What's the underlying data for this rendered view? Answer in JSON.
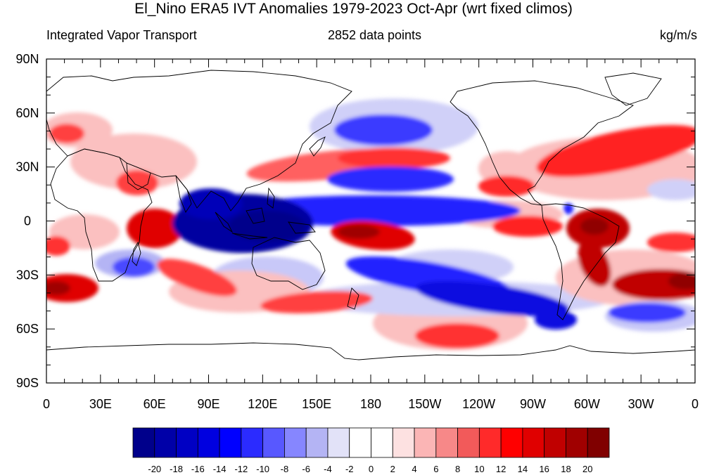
{
  "figure": {
    "title": "El_Nino ERA5 IVT Anomalies 1979-2023 Oct-Apr (wrt fixed climos)",
    "left_subtitle": "Integrated Vapor Transport",
    "center_subtitle": "2852 data points",
    "right_subtitle": "kg/m/s"
  },
  "axes": {
    "x_ticks": [
      "0",
      "30E",
      "60E",
      "90E",
      "120E",
      "150E",
      "180",
      "150W",
      "120W",
      "90W",
      "60W",
      "30W",
      "0"
    ],
    "y_ticks": [
      "90N",
      "60N",
      "30N",
      "0",
      "30S",
      "60S",
      "90S"
    ]
  },
  "colorbar": {
    "labels": [
      "-20",
      "-18",
      "-16",
      "-14",
      "-12",
      "-10",
      "-8",
      "-6",
      "-4",
      "-2",
      "0",
      "2",
      "4",
      "6",
      "8",
      "10",
      "12",
      "14",
      "16",
      "18",
      "20"
    ],
    "colors": [
      "#00008b",
      "#0000a8",
      "#0000c4",
      "#0000e0",
      "#0000ff",
      "#2b2bff",
      "#5858ff",
      "#8686ff",
      "#b4b4f4",
      "#e2e2f8",
      "#ffffff",
      "#ffffff",
      "#fde1e1",
      "#fbb5b5",
      "#f78888",
      "#f25a5a",
      "#ff2a2a",
      "#ff0000",
      "#e00000",
      "#c00000",
      "#a00000",
      "#800000"
    ]
  },
  "map_fields": {
    "note_colors": {
      "strong_neg": "#0000c8",
      "neg": "#4f4fff",
      "weak_neg": "#c8c8f8",
      "strong_pos": "#d40000",
      "pos": "#ff3030",
      "weak_pos": "#fbb8b8"
    }
  }
}
